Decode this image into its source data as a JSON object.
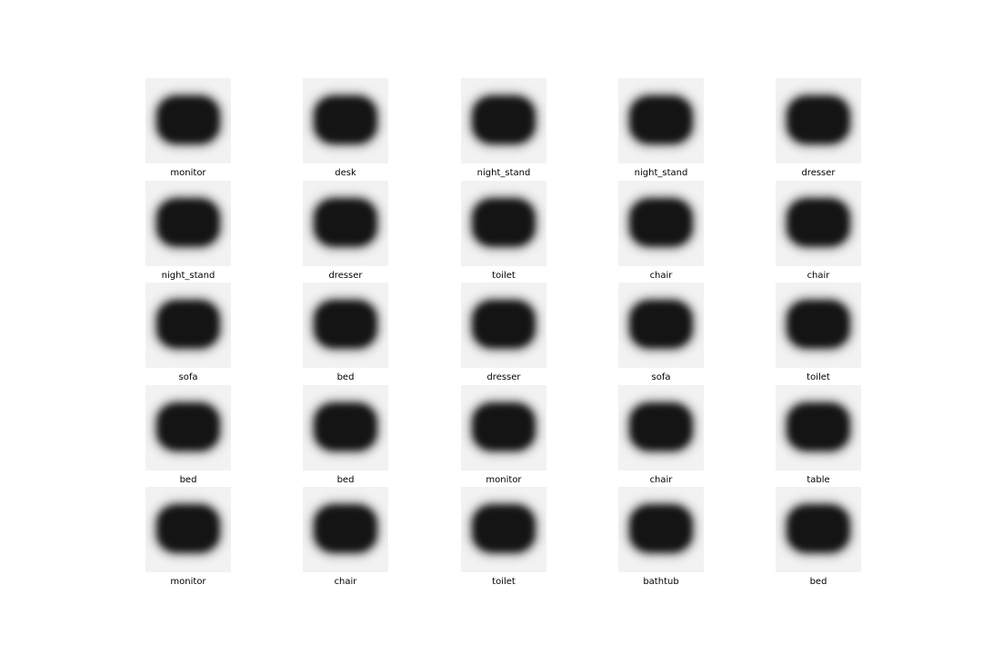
{
  "labels": [
    [
      "monitor",
      "desk",
      "night_stand",
      "night_stand",
      "dresser"
    ],
    [
      "night_stand",
      "dresser",
      "toilet",
      "chair",
      "chair"
    ],
    [
      "sofa",
      "bed",
      "dresser",
      "sofa",
      "toilet"
    ],
    [
      "bed",
      "bed",
      "monitor",
      "chair",
      "table"
    ],
    [
      "monitor",
      "chair",
      "toilet",
      "bathtub",
      "bed"
    ]
  ]
}
